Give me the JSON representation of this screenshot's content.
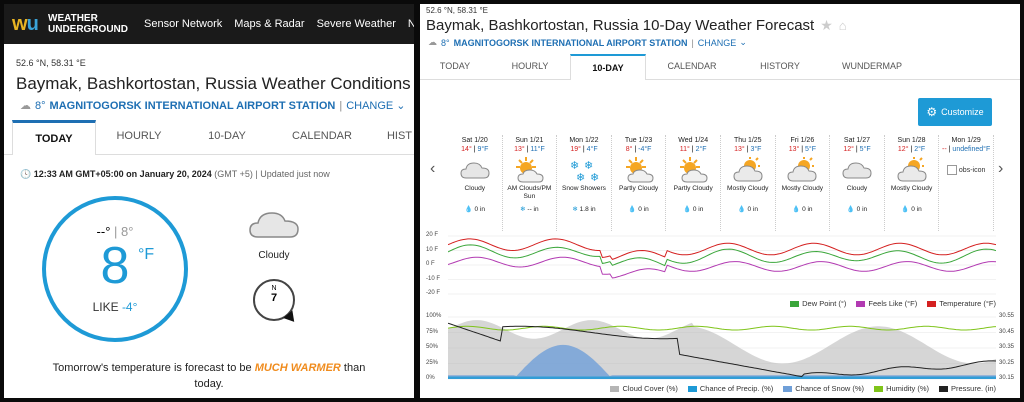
{
  "left": {
    "brand": {
      "line1": "WEATHER",
      "line2": "UNDERGROUND"
    },
    "nav": [
      "Sensor Network",
      "Maps & Radar",
      "Severe Weather",
      "Ne"
    ],
    "coords": "52.6 °N, 58.31 °E",
    "title": "Baymak, Bashkortostan, Russia Weather Conditions",
    "station": {
      "temp": "8°",
      "name": "MAGNITOGORSK INTERNATIONAL AIRPORT STATION",
      "sep": "|",
      "change": "CHANGE"
    },
    "tabs": [
      "TODAY",
      "HOURLY",
      "10-DAY",
      "CALENDAR",
      "HIST"
    ],
    "updated": {
      "time": "12:33 AM GMT+05:00 on January 20, 2024",
      "tz": "(GMT +5)",
      "sep": "|",
      "note": "Updated just now"
    },
    "gauge": {
      "hi": "--°",
      "sep": "|",
      "lo": "8°",
      "temp": "8",
      "unit": "°F",
      "like_label": "LIKE",
      "like_val": "-4°"
    },
    "condition": "Cloudy",
    "wind": {
      "dir": "N",
      "speed": "7"
    },
    "note": {
      "pre": "Tomorrow's temperature is forecast to be",
      "hl": "MUCH WARMER",
      "post": "than",
      "end": "today."
    }
  },
  "right": {
    "coords": "52.6 °N, 58.31 °E",
    "title": "Baymak, Bashkortostan, Russia 10-Day Weather Forecast",
    "station": {
      "temp": "8°",
      "name": "MAGNITOGORSK INTERNATIONAL AIRPORT STATION",
      "sep": "|",
      "change": "CHANGE"
    },
    "tabs": [
      "TODAY",
      "HOURLY",
      "10-DAY",
      "CALENDAR",
      "HISTORY",
      "WUNDERMAP"
    ],
    "customize": "Customize",
    "days": [
      {
        "d": "Sat 1/20",
        "hi": "14°",
        "lo": "9°F",
        "cond": "Cloudy",
        "icon": "cloud-icon",
        "precip": "0 in"
      },
      {
        "d": "Sun 1/21",
        "hi": "13°",
        "lo": "11°F",
        "cond": "AM Clouds/PM Sun",
        "icon": "sun-cloud-icon",
        "precip": "-- in"
      },
      {
        "d": "Mon 1/22",
        "hi": "19°",
        "lo": "4°F",
        "cond": "Snow Showers",
        "icon": "snow-icon",
        "precip": "1.8 in"
      },
      {
        "d": "Tue 1/23",
        "hi": "8°",
        "lo": "-4°F",
        "cond": "Partly Cloudy",
        "icon": "sun-cloud-icon",
        "precip": "0 in"
      },
      {
        "d": "Wed 1/24",
        "hi": "11°",
        "lo": "2°F",
        "cond": "Partly Cloudy",
        "icon": "sun-cloud-icon",
        "precip": "0 in"
      },
      {
        "d": "Thu 1/25",
        "hi": "13°",
        "lo": "3°F",
        "cond": "Mostly Cloudy",
        "icon": "cloud-sun-icon",
        "precip": "0 in"
      },
      {
        "d": "Fri 1/26",
        "hi": "13°",
        "lo": "5°F",
        "cond": "Mostly Cloudy",
        "icon": "cloud-sun-icon",
        "precip": "0 in"
      },
      {
        "d": "Sat 1/27",
        "hi": "12°",
        "lo": "5°F",
        "cond": "Cloudy",
        "icon": "cloud-icon",
        "precip": "0 in"
      },
      {
        "d": "Sun 1/28",
        "hi": "12°",
        "lo": "2°F",
        "cond": "Mostly Cloudy",
        "icon": "cloud-sun-icon",
        "precip": "0 in"
      },
      {
        "d": "Mon 1/29",
        "hi": "--",
        "lo": "undefined°F",
        "cond": "obs-icon",
        "icon": "broken-image-icon",
        "precip": ""
      }
    ],
    "chart_temps": {
      "ylabels": [
        "20 F",
        "10 F",
        "0 F",
        "-10 F",
        "-20 F"
      ]
    },
    "legend1": [
      "Dew Point (°)",
      "Feels Like (°F)",
      "Temperature (°F)"
    ],
    "chart_pct": {
      "ylabels": [
        "100%",
        "75%",
        "50%",
        "25%",
        "0%"
      ],
      "rlabels": [
        "30.55",
        "30.45",
        "30.35",
        "30.25",
        "30.15"
      ]
    },
    "legend2": [
      "Cloud Cover (%)",
      "Chance of Precip. (%)",
      "Chance of Snow (%)",
      "Humidity (%)",
      "Pressure. (in)"
    ],
    "colors": {
      "dew": "#3aa63a",
      "feels": "#b23ab2",
      "temp": "#d42020",
      "cloud": "#b5b5b5",
      "precip": "#1e9ad6",
      "snow": "#6f9fd8",
      "humidity": "#7fc41a",
      "pressure": "#222222"
    }
  }
}
